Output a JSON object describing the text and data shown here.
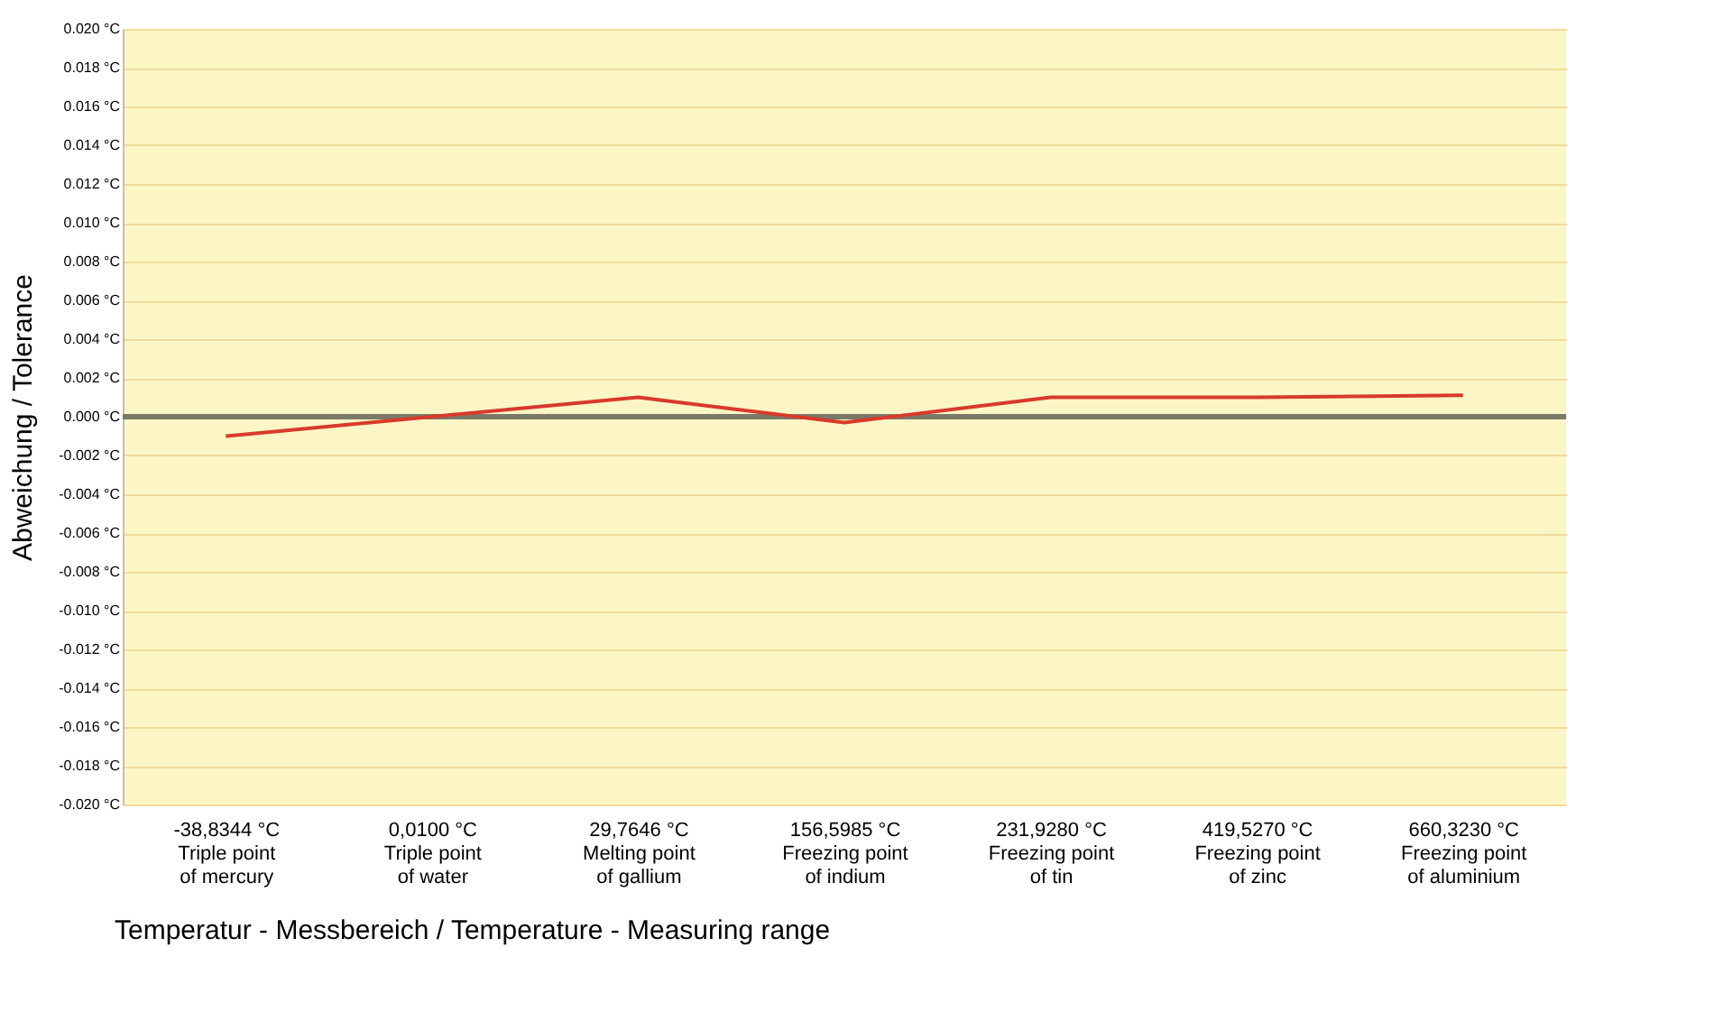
{
  "chart_data": {
    "type": "line",
    "xlabel": "Temperatur - Messbereich / Temperature - Measuring range",
    "ylabel": "Abweichung / Tolerance",
    "categories": [
      "-38,8344 °C\n\nTriple point\nof mercury",
      "0,0100 °C\n\nTriple point\nof water",
      "29,7646 °C\n\nMelting point\nof gallium",
      "156,5985 °C\n\nFreezing point\nof indium",
      "231,9280 °C\n\nFreezing point\nof tin",
      "419,5270 °C\n\nFreezing point\nof zinc",
      "660,3230 °C\n\nFreezing point\nof aluminium"
    ],
    "series": [
      {
        "color": "#d93a2b",
        "values": [
          -0.001,
          0.0,
          0.001,
          -0.0003,
          0.001,
          0.001,
          0.0011
        ]
      }
    ],
    "ylim": [
      -0.02,
      0.02
    ],
    "yticks": [
      {
        "value": -0.02,
        "label": "-0.020 °C"
      },
      {
        "value": -0.018,
        "label": "-0.018 °C"
      },
      {
        "value": -0.016,
        "label": "-0.016 °C"
      },
      {
        "value": -0.014,
        "label": "-0.014 °C"
      },
      {
        "value": -0.012,
        "label": "-0.012 °C"
      },
      {
        "value": -0.01,
        "label": "-0.010 °C"
      },
      {
        "value": -0.008,
        "label": "-0.008 °C"
      },
      {
        "value": -0.006,
        "label": "-0.006 °C"
      },
      {
        "value": -0.004,
        "label": "-0.004 °C"
      },
      {
        "value": -0.002,
        "label": "-0.002 °C"
      },
      {
        "value": 0,
        "label": "0.000 °C"
      },
      {
        "value": 0.002,
        "label": "0.002 °C"
      },
      {
        "value": 0.004,
        "label": "0.004 °C"
      },
      {
        "value": 0.006,
        "label": "0.006 °C"
      },
      {
        "value": 0.008,
        "label": "0.008 °C"
      },
      {
        "value": 0.01,
        "label": "0.010 °C"
      },
      {
        "value": 0.012,
        "label": "0.012 °C"
      },
      {
        "value": 0.014,
        "label": "0.014 °C"
      },
      {
        "value": 0.016,
        "label": "0.016 °C"
      },
      {
        "value": 0.018,
        "label": "0.018 °C"
      },
      {
        "value": 0.02,
        "label": "0.020 °C"
      }
    ],
    "ref_lines": [
      {
        "axis": "y",
        "value": 0,
        "color": "#7a7a68"
      }
    ],
    "grid": "y",
    "marker": "none",
    "line_style": "solid"
  }
}
